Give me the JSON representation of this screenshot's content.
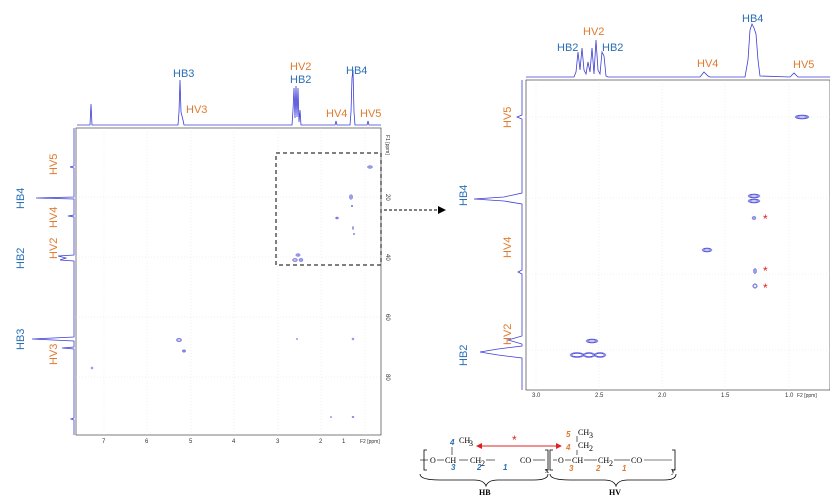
{
  "colors": {
    "hb": "#2a6fb5",
    "hv": "#e07a2e",
    "spectrum": "#3d3dd6",
    "marker": "#e02020",
    "arrow": "#000000"
  },
  "left_panel": {
    "top_labels": {
      "hb3": "HB3",
      "hv3": "HV3",
      "hv2": "HV2",
      "hb2": "HB2",
      "hb4": "HB4",
      "hv4": "HV4",
      "hv5": "HV5"
    },
    "side_labels": {
      "hv5": "HV5",
      "hb4": "HB4",
      "hv4": "HV4",
      "hv2": "HV2",
      "hb2": "HB2",
      "hb3": "HB3",
      "hv3": "HV3"
    },
    "x_ticks": [
      "7",
      "6",
      "5",
      "4",
      "3",
      "2",
      "1"
    ],
    "x_axis_label": "F2 [ppm]",
    "y_ticks": [
      "20",
      "40",
      "60",
      "80"
    ],
    "y_axis_label": "F1 [ppm]"
  },
  "right_panel": {
    "top_labels": {
      "hb2_left": "HB2",
      "hv2": "HV2",
      "hb2_right": "HB2",
      "hv4": "HV4",
      "hb4": "HB4",
      "hv5": "HV5"
    },
    "side_labels": {
      "hv5": "HV5",
      "hb4": "HB4",
      "hv4": "HV4",
      "hv2": "HV2",
      "hb2": "HB2"
    },
    "x_ticks": [
      "3.0",
      "2.5",
      "2.0",
      "1.5",
      "1.0"
    ],
    "x_axis_label": "F2 [ppm]",
    "asterisk": "*"
  },
  "structure": {
    "hb_label": "HB",
    "hv_label": "HV",
    "asterisk": "*",
    "hb_numbers": {
      "n4": "4",
      "n3": "3",
      "n2": "2",
      "n1": "1"
    },
    "hv_numbers": {
      "n5": "5",
      "n4": "4",
      "n3": "3",
      "n2": "2",
      "n1": "1"
    },
    "hb_fragments": {
      "ch3": "CH",
      "ch3_sub": "3",
      "o": "O",
      "ch": "CH",
      "ch2": "CH",
      "ch2_sub": "2",
      "co": "CO",
      "sub_x": "x"
    },
    "hv_fragments": {
      "ch3": "CH",
      "ch3_sub": "3",
      "ch2": "CH",
      "ch2_sub": "2",
      "o": "O",
      "ch": "CH",
      "ch2b": "CH",
      "ch2b_sub": "2",
      "co": "CO",
      "sub_y": "y"
    }
  }
}
